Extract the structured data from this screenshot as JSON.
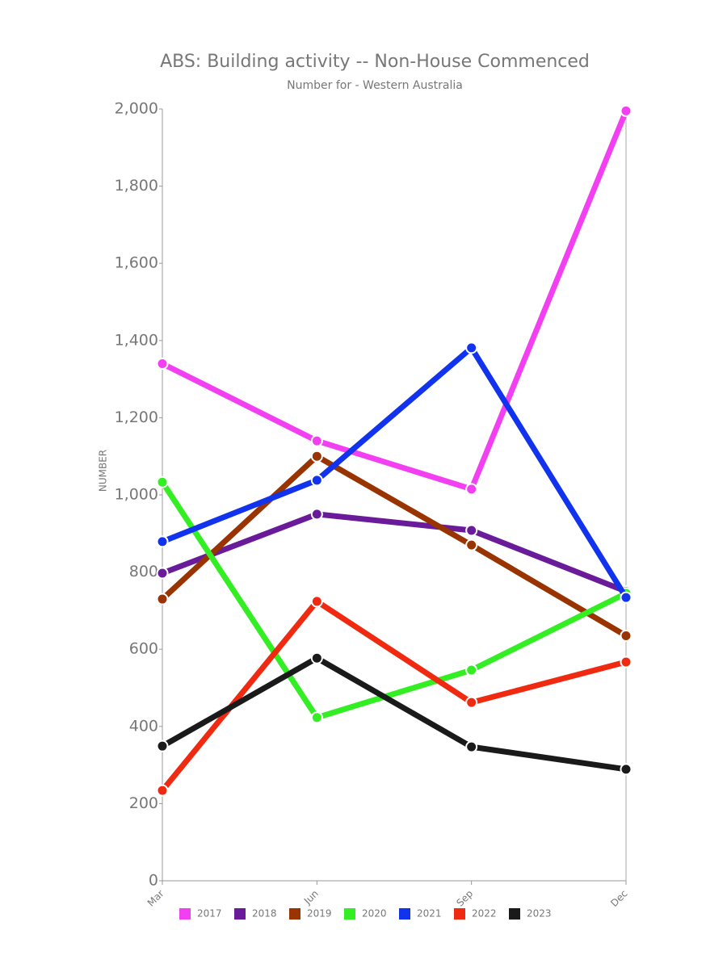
{
  "chart_data": {
    "type": "line",
    "title": "ABS: Building activity -- Non-House Commenced",
    "subtitle": "Number for - Western Australia",
    "y_label": "NUMBER",
    "categories": [
      "Mar",
      "Jun",
      "Sep",
      "Dec"
    ],
    "ylim": [
      0,
      2000
    ],
    "yticks": [
      0,
      200,
      400,
      600,
      800,
      {
        "value": 1000,
        "label": "1,000"
      },
      {
        "value": 1200,
        "label": "1,200"
      },
      {
        "value": 1400,
        "label": "1,400"
      },
      {
        "value": 1600,
        "label": "1,600"
      },
      {
        "value": 1800,
        "label": "1,800"
      },
      {
        "value": 2000,
        "label": "2,000"
      }
    ],
    "grid": false,
    "legend": "bottom",
    "series": [
      {
        "name": "2017",
        "color": "#f23ff2",
        "values": [
          1340,
          1140,
          1015,
          1995
        ]
      },
      {
        "name": "2018",
        "color": "#6a1b9a",
        "values": [
          797,
          950,
          908,
          750
        ]
      },
      {
        "name": "2019",
        "color": "#993300",
        "values": [
          730,
          1100,
          870,
          635
        ]
      },
      {
        "name": "2020",
        "color": "#33ee22",
        "values": [
          1033,
          423,
          546,
          745
        ]
      },
      {
        "name": "2021",
        "color": "#1133ee",
        "values": [
          879,
          1038,
          1381,
          734
        ]
      },
      {
        "name": "2022",
        "color": "#f02a10",
        "values": [
          234,
          724,
          462,
          567
        ]
      },
      {
        "name": "2023",
        "color": "#1a1a1a",
        "values": [
          349,
          577,
          347,
          289
        ]
      }
    ]
  }
}
